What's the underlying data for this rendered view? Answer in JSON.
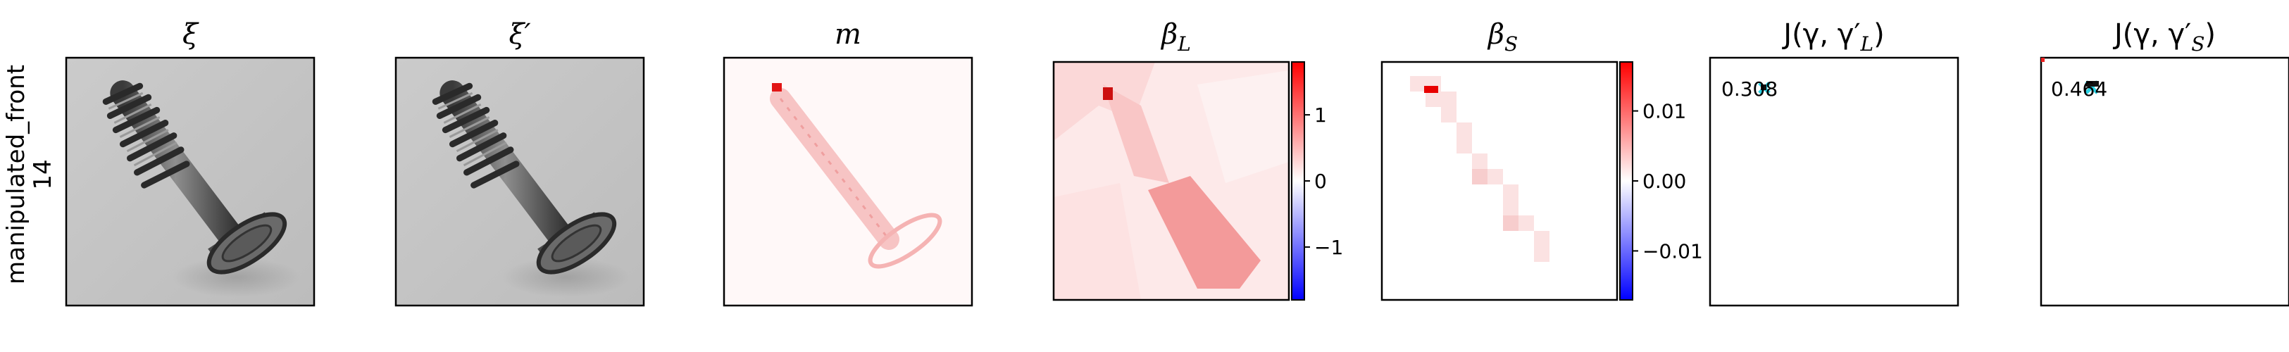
{
  "row_label": {
    "line1": "manipulated_front",
    "line2": "14"
  },
  "panels": [
    {
      "id": "xi",
      "title": "ξ"
    },
    {
      "id": "xi-prime",
      "title": "ξ′"
    },
    {
      "id": "m",
      "title": "m"
    },
    {
      "id": "beta-l",
      "title": "β",
      "title_sub": "L"
    },
    {
      "id": "beta-s",
      "title": "β",
      "title_sub": "S"
    },
    {
      "id": "j-l",
      "title": "J(γ, γ′",
      "title_sub": "L",
      "title_end": ")",
      "value": "0.308"
    },
    {
      "id": "j-s",
      "title": "J(γ, γ′",
      "title_sub": "S",
      "title_end": ")",
      "value": "0.464"
    }
  ],
  "colorbars": [
    {
      "id": "beta-l-colorbar",
      "ticks": [
        "1",
        "0",
        "−1"
      ],
      "tick_values": [
        1,
        0,
        -1
      ],
      "range": [
        -1.8,
        1.8
      ]
    },
    {
      "id": "beta-s-colorbar",
      "ticks": [
        "0.01",
        "0.00",
        "−0.01"
      ],
      "tick_values": [
        0.01,
        0.0,
        -0.01
      ],
      "range": [
        -0.017,
        0.017
      ]
    }
  ],
  "colors": {
    "positive": "#ff0000",
    "neutral": "#ffffff",
    "negative": "#0000ff",
    "marker": "#2ad4e6"
  }
}
